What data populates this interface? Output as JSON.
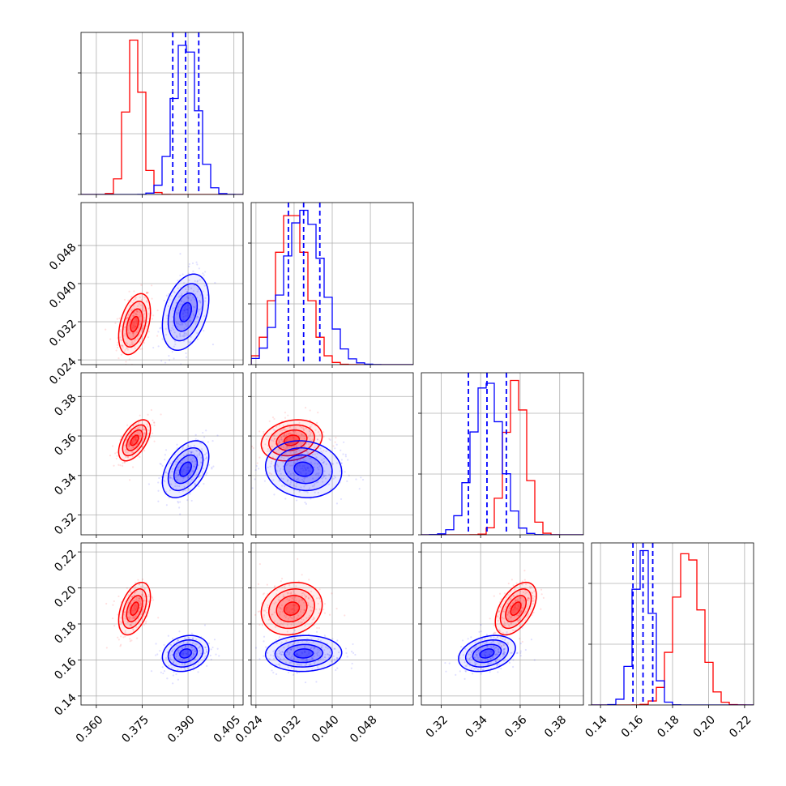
{
  "chart_data": {
    "type": "corner",
    "parameters": [
      {
        "range": [
          0.355,
          0.408
        ],
        "ticks": [
          "0.360",
          "0.375",
          "0.390",
          "0.405"
        ]
      },
      {
        "range": [
          0.023,
          0.057
        ],
        "ticks": [
          "0.024",
          "0.032",
          "0.040",
          "0.048"
        ]
      },
      {
        "range": [
          0.31,
          0.392
        ],
        "ticks": [
          "0.32",
          "0.34",
          "0.36",
          "0.38"
        ]
      },
      {
        "range": [
          0.135,
          0.225
        ],
        "ticks": [
          "0.14",
          "0.16",
          "0.18",
          "0.20",
          "0.22"
        ]
      }
    ],
    "series": [
      {
        "color": "#ff0000",
        "mean": [
          0.3725,
          0.0315,
          0.3578,
          0.1885
        ],
        "std": [
          0.0026,
          0.0032,
          0.0052,
          0.0073
        ],
        "correlation": [
          [
            1.0,
            0.4,
            0.55,
            0.45
          ],
          [
            0.4,
            1.0,
            0.2,
            0.15
          ],
          [
            0.55,
            0.2,
            1.0,
            0.5
          ],
          [
            0.45,
            0.15,
            0.5,
            1.0
          ]
        ]
      },
      {
        "color": "#0000ff",
        "mean": [
          0.3892,
          0.034,
          0.3432,
          0.1636
        ],
        "std": [
          0.0038,
          0.004,
          0.0072,
          0.005
        ],
        "correlation": [
          [
            1.0,
            0.35,
            0.45,
            0.2
          ],
          [
            0.35,
            1.0,
            -0.1,
            0.05
          ],
          [
            0.45,
            -0.1,
            1.0,
            0.3
          ],
          [
            0.2,
            0.05,
            0.3,
            1.0
          ]
        ],
        "quantiles": [
          [
            0.385,
            0.3892,
            0.3935
          ],
          [
            0.0308,
            0.034,
            0.0374
          ],
          [
            0.3338,
            0.3432,
            0.353
          ],
          [
            0.158,
            0.1636,
            0.169
          ]
        ]
      }
    ],
    "histogram_bins": 20,
    "contour_sigma_levels": [
      0.5,
      1.0,
      1.5,
      2.0
    ],
    "grid": true,
    "legend": "none"
  }
}
